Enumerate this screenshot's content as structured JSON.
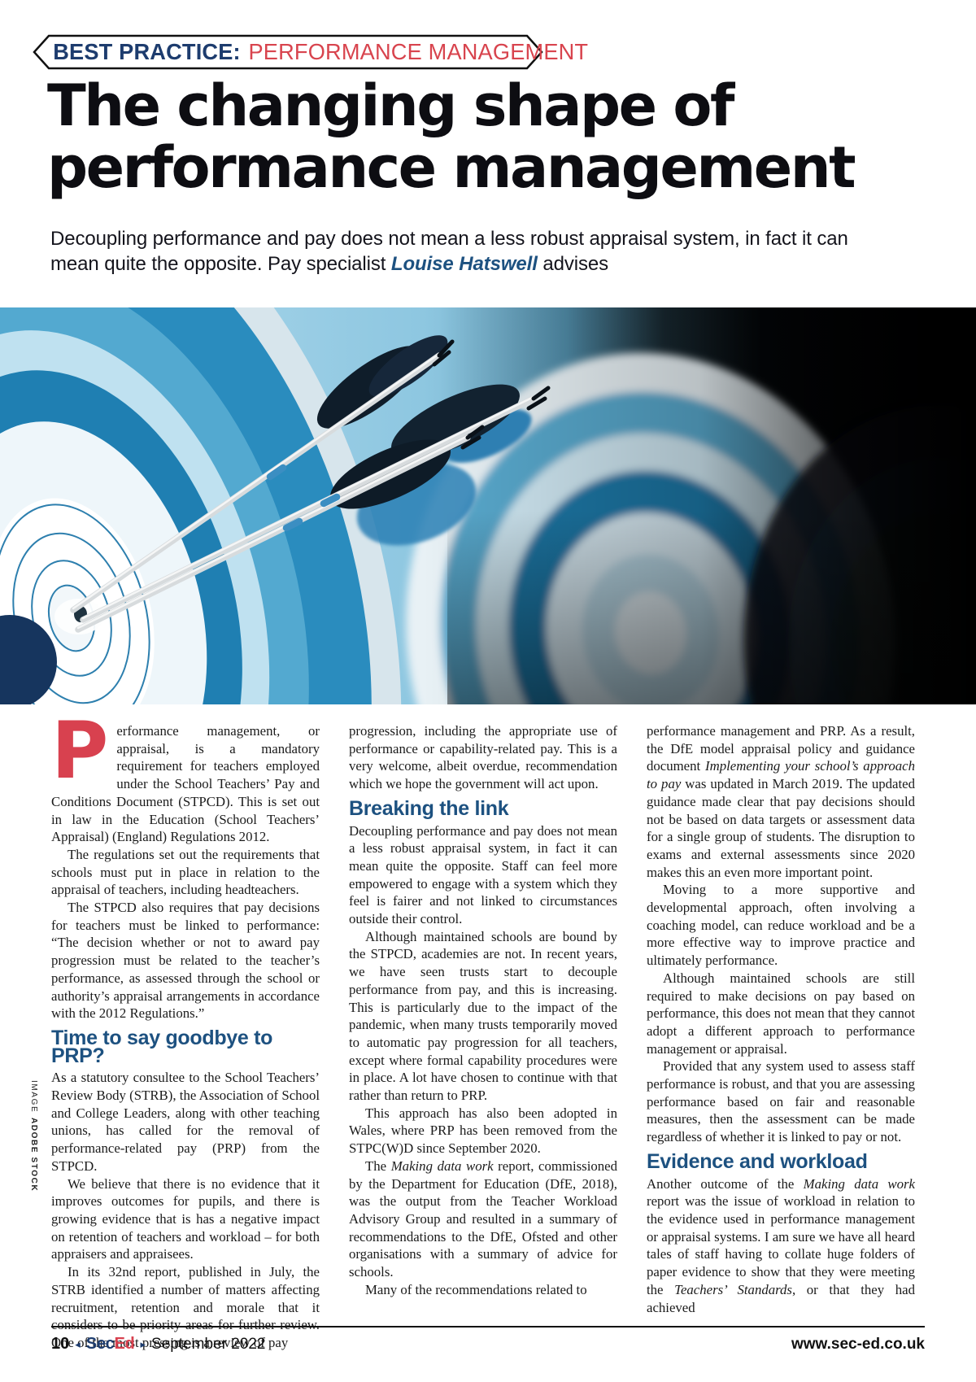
{
  "colors": {
    "accent_red": "#d8414f",
    "navy": "#1d3c6e",
    "subhead_blue": "#1d5180",
    "body_text": "#1b1b1b"
  },
  "banner": {
    "label": "BEST PRACTICE:",
    "topic": "PERFORMANCE MANAGEMENT"
  },
  "headline": {
    "line1": "The changing shape of",
    "line2": "performance management"
  },
  "standfirst": {
    "segments": [
      {
        "t": "Decoupling performance and pay does not mean a less robust appraisal system, in fact it can mean quite the opposite. Pay specialist "
      },
      {
        "t": "Louise Hatswell",
        "b": true,
        "i": true,
        "blue": true
      },
      {
        "t": " advises"
      }
    ]
  },
  "image_credit": {
    "label": "IMAGE",
    "value": "ADOBE STOCK"
  },
  "article": {
    "columns": [
      {
        "blocks": [
          {
            "type": "p",
            "dropcap": "P",
            "segments": [
              {
                "t": "erformance management, or appraisal, is a mandatory requirement for teachers employed under the School Teachers’ Pay and Conditions Document (STPCD). This is set out in law in the Education (School Teachers’ Appraisal) (England) Regulations 2012."
              }
            ]
          },
          {
            "type": "p",
            "ind": true,
            "segments": [
              {
                "t": "The regulations set out the requirements that schools must put in place in relation to the appraisal of teachers, including headteachers."
              }
            ]
          },
          {
            "type": "p",
            "ind": true,
            "segments": [
              {
                "t": "The STPCD also requires that pay decisions for teachers must be linked to performance: “The decision whether or not to award pay progression must be related to the teacher’s performance, as assessed through the school or authority’s appraisal arrangements in accordance with the 2012 Regulations.”"
              }
            ]
          },
          {
            "type": "subhead",
            "text": "Time to say goodbye to PRP?"
          },
          {
            "type": "p",
            "segments": [
              {
                "t": "As a statutory consultee to the School Teachers’ Review Body (STRB), the Association of School and College Leaders, along with other teaching unions, has called for the removal of performance-related pay (PRP) from the STPCD."
              }
            ]
          },
          {
            "type": "p",
            "ind": true,
            "segments": [
              {
                "t": "We believe that there is no evidence that it improves outcomes for pupils, and there is growing evidence that is has a negative impact on retention of teachers and workload – for both appraisers and appraisees."
              }
            ]
          },
          {
            "type": "p",
            "ind": true,
            "segments": [
              {
                "t": "In its 32nd report, published in July, the STRB identified a number of matters affecting recruitment, retention and morale that it considers to be priority areas for further review. One of the most pressing is a review of pay"
              }
            ]
          }
        ]
      },
      {
        "blocks": [
          {
            "type": "p",
            "segments": [
              {
                "t": "progression, including the appropriate use of performance or capability-related pay. This is a very welcome, albeit overdue, recommendation which we hope the government will act upon."
              }
            ]
          },
          {
            "type": "subhead",
            "text": "Breaking the link"
          },
          {
            "type": "p",
            "segments": [
              {
                "t": "Decoupling performance and pay does not mean a less robust appraisal system, in fact it can mean quite the opposite. Staff can feel more empowered to engage with a system which they feel is fairer and not linked to circumstances outside their control."
              }
            ]
          },
          {
            "type": "p",
            "ind": true,
            "segments": [
              {
                "t": "Although maintained schools are bound by the STPCD, academies are not. In recent years, we have seen trusts start to decouple performance from pay, and this is increasing. This is particularly due to the impact of the pandemic, when many trusts temporarily moved to automatic pay progression for all teachers, except where formal capability procedures were in place. A lot have chosen to continue with that rather than return to PRP."
              }
            ]
          },
          {
            "type": "p",
            "ind": true,
            "segments": [
              {
                "t": "This approach has also been adopted in Wales, where PRP has been removed from the STPC(W)D since September 2020."
              }
            ]
          },
          {
            "type": "p",
            "ind": true,
            "segments": [
              {
                "t": "The "
              },
              {
                "t": "Making data work",
                "i": true
              },
              {
                "t": " report, commissioned by the Department for Education (DfE, 2018), was the output from the Teacher Workload Advisory Group and resulted in a summary of recommendations to the DfE, Ofsted and other organisations with a summary of advice for schools."
              }
            ]
          },
          {
            "type": "p",
            "ind": true,
            "segments": [
              {
                "t": "Many of the recommendations related to"
              }
            ]
          }
        ]
      },
      {
        "blocks": [
          {
            "type": "p",
            "segments": [
              {
                "t": "performance management and PRP. As a result, the DfE model appraisal policy and guidance document "
              },
              {
                "t": "Implementing your school’s approach to pay",
                "i": true
              },
              {
                "t": " was updated in March 2019. The updated guidance made clear that pay decisions should not be based on data targets or assessment data for a single group of students. The disruption to exams and external assessments since 2020 makes this an even more important point."
              }
            ]
          },
          {
            "type": "p",
            "ind": true,
            "segments": [
              {
                "t": "Moving to a more supportive and developmental approach, often involving a coaching model, can reduce workload and be a more effective way to improve practice and ultimately performance."
              }
            ]
          },
          {
            "type": "p",
            "ind": true,
            "segments": [
              {
                "t": "Although maintained schools are still required to make decisions on pay based on performance, this does not mean that they cannot adopt a different approach to performance management or appraisal."
              }
            ]
          },
          {
            "type": "p",
            "ind": true,
            "segments": [
              {
                "t": "Provided that any system used to assess staff performance is robust, and that you are assessing performance based on fair and reasonable measures, then the assessment can be made regardless of whether it is linked to pay or not."
              }
            ]
          },
          {
            "type": "subhead",
            "text": "Evidence and workload"
          },
          {
            "type": "p",
            "segments": [
              {
                "t": "Another outcome of the "
              },
              {
                "t": "Making data work",
                "i": true
              },
              {
                "t": " report was the issue of workload in relation to the evidence used in performance management or appraisal systems. I am sure we have all heard tales of staff having to collate huge folders of paper evidence to show that they were meeting the "
              },
              {
                "t": "Teachers’ Standards",
                "i": true
              },
              {
                "t": ", or that they had achieved"
              }
            ]
          }
        ]
      }
    ]
  },
  "footer": {
    "page_number": "10",
    "brand_sec": "Sec",
    "brand_ed": "Ed",
    "issue_date": "September 2022",
    "website": "www.sec-ed.co.uk"
  }
}
